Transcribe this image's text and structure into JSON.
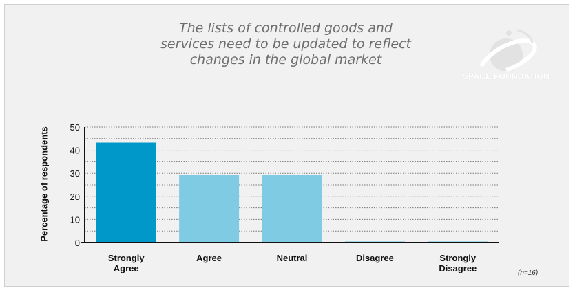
{
  "chart_data": {
    "type": "bar",
    "title": "The lists of controlled goods and\nservices need to be updated to reflect\nchanges in the global market",
    "ylabel": "Percentage of respondents",
    "xlabel": "",
    "categories": [
      "Strongly\nAgree",
      "Agree",
      "Neutral",
      "Disagree",
      "Strongly\nDisagree"
    ],
    "values": [
      43.3,
      29.3,
      29.3,
      0.5,
      0.5
    ],
    "bar_colors": [
      "#0097c9",
      "#80cbe4",
      "#80cbe4",
      "#80cbe4",
      "#80cbe4"
    ],
    "ylim": [
      0,
      50
    ],
    "yticks": [
      0,
      10,
      20,
      30,
      40,
      50
    ],
    "grid": true,
    "note": "(n=16)"
  },
  "logo": {
    "text": "SPACE FOUNDATION",
    "icon": "space-foundation-logo-icon"
  }
}
